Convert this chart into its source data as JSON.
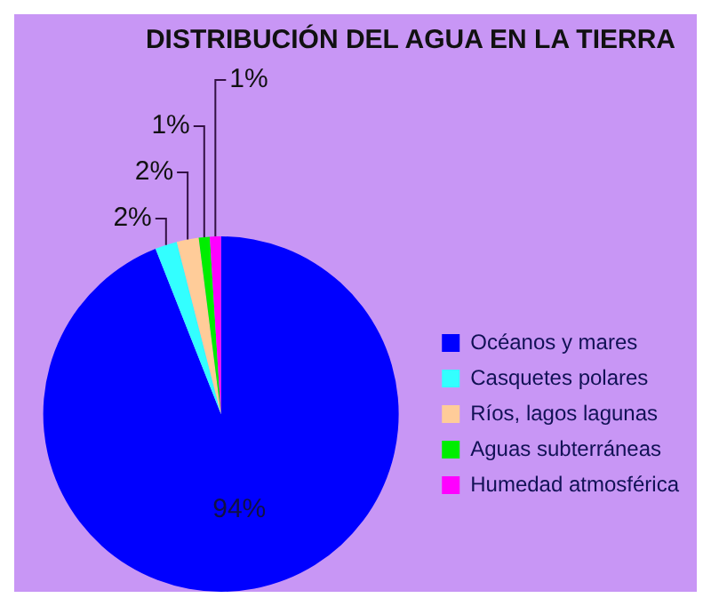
{
  "chart_data": {
    "type": "pie",
    "title": "DISTRIBUCIÓN DEL AGUA EN LA TIERRA",
    "categories": [
      "Océanos y mares",
      "Casquetes polares",
      "Ríos, lagos lagunas",
      "Aguas subterráneas",
      "Humedad atmosférica"
    ],
    "values": [
      94,
      2,
      2,
      1,
      1
    ],
    "colors": [
      "#0000ff",
      "#33ffff",
      "#ffcc99",
      "#00ee00",
      "#ff00ff"
    ],
    "value_labels": [
      "94%",
      "2%",
      "2%",
      "1%",
      "1%"
    ],
    "legend": "right"
  }
}
